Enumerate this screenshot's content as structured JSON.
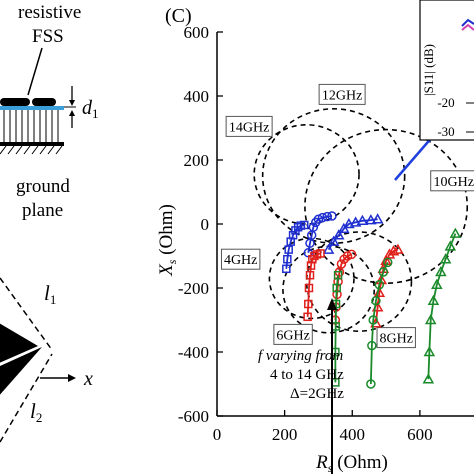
{
  "panel_label": "(C)",
  "left_panel": {
    "label_resistive": "resistive",
    "label_fss": "FSS",
    "label_d1": "d",
    "label_d1_sub": "1",
    "label_ground": "ground",
    "label_plane": "plane",
    "label_l1": "l",
    "label_l1_sub": "1",
    "label_l2": "l",
    "label_l2_sub": "2",
    "label_x": "x"
  },
  "inset": {
    "ylabel": "|S11| (dB)",
    "yticks": [
      "-20",
      "-30"
    ]
  },
  "annotation": {
    "line1": "f varying from",
    "line2": "4 to 14 GHz",
    "line3": "Δ=2GHz"
  },
  "chart_data": {
    "type": "scatter",
    "title": "",
    "xlabel": "R_s (Ohm)",
    "ylabel": "X_s (Ohm)",
    "xlim": [
      0,
      760
    ],
    "ylim": [
      -600,
      600
    ],
    "xticks": [
      "0",
      "200",
      "400",
      "600"
    ],
    "yticks": [
      "600",
      "400",
      "200",
      "0",
      "-200",
      "-400",
      "-600"
    ],
    "circles": [
      {
        "label": "14GHz",
        "cx": 265,
        "cy": 155,
        "r": 155
      },
      {
        "label": "12GHz",
        "cx": 345,
        "cy": 150,
        "r": 210
      },
      {
        "label": "10GHz",
        "cx": 500,
        "cy": 55,
        "r": 240
      },
      {
        "label": "4GHz",
        "cx": 280,
        "cy": -170,
        "r": 125
      },
      {
        "label": "6GHz",
        "cx": 330,
        "cy": -205,
        "r": 135
      },
      {
        "label": "8GHz",
        "cx": 420,
        "cy": -180,
        "r": 155
      }
    ],
    "circle_labels": [
      {
        "text": "14GHz",
        "x": 95,
        "y": 305
      },
      {
        "text": "12GHz",
        "x": 370,
        "y": 405
      },
      {
        "text": "10GHz",
        "x": 700,
        "y": 135
      },
      {
        "text": "4GHz",
        "x": 70,
        "y": -110
      },
      {
        "text": "6GHz",
        "x": 225,
        "y": -345
      },
      {
        "text": "8GHz",
        "x": 530,
        "y": -355
      }
    ],
    "series": [
      {
        "color": "#1f2fd0",
        "marker": "square",
        "x": [
          205,
          208,
          212,
          218,
          225,
          232,
          240,
          248,
          258
        ],
        "y": [
          -140,
          -110,
          -80,
          -55,
          -35,
          -20,
          -10,
          -5,
          -3
        ]
      },
      {
        "color": "#1f2fd0",
        "marker": "circle",
        "x": [
          270,
          275,
          280,
          285,
          292,
          300,
          312,
          326,
          340
        ],
        "y": [
          -90,
          -60,
          -35,
          -10,
          5,
          15,
          20,
          23,
          25
        ]
      },
      {
        "color": "#1f2fd0",
        "marker": "triangle",
        "x": [
          330,
          345,
          360,
          375,
          390,
          410,
          430,
          455,
          475
        ],
        "y": [
          -80,
          -55,
          -35,
          -15,
          0,
          5,
          10,
          12,
          15
        ]
      },
      {
        "color": "#e0201a",
        "marker": "square",
        "x": [
          268,
          270,
          272,
          275,
          278,
          282,
          288,
          296,
          306
        ],
        "y": [
          -290,
          -250,
          -200,
          -160,
          -130,
          -110,
          -100,
          -95,
          -92
        ]
      },
      {
        "color": "#e0201a",
        "marker": "circle",
        "x": [
          350,
          352,
          355,
          358,
          362,
          368,
          376,
          386,
          398
        ],
        "y": [
          -300,
          -260,
          -220,
          -180,
          -150,
          -125,
          -110,
          -100,
          -95
        ]
      },
      {
        "color": "#e0201a",
        "marker": "triangle",
        "x": [
          470,
          475,
          480,
          486,
          492,
          500,
          510,
          522,
          535
        ],
        "y": [
          -310,
          -260,
          -215,
          -175,
          -140,
          -115,
          -95,
          -85,
          -80
        ]
      },
      {
        "color": "#1a8a2a",
        "marker": "square",
        "x": [
          350,
          350,
          351,
          352,
          354,
          358
        ],
        "y": [
          -495,
          -400,
          -320,
          -250,
          -200,
          -160
        ]
      },
      {
        "color": "#1a8a2a",
        "marker": "circle",
        "x": [
          455,
          458,
          462,
          470,
          480,
          492,
          505
        ],
        "y": [
          -500,
          -380,
          -300,
          -240,
          -190,
          -150,
          -120
        ]
      },
      {
        "color": "#1a8a2a",
        "marker": "triangle",
        "x": [
          625,
          628,
          632,
          640,
          650,
          662,
          676,
          690,
          705
        ],
        "y": [
          -485,
          -400,
          -300,
          -240,
          -190,
          -150,
          -110,
          -70,
          -30
        ]
      }
    ]
  }
}
